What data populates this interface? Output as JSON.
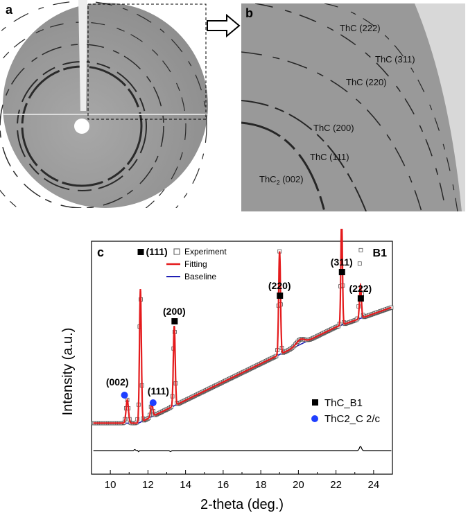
{
  "panel_a": {
    "label": "a"
  },
  "panel_b": {
    "label": "b",
    "reflections": [
      {
        "name": "ThC (222)"
      },
      {
        "name": "ThC (311)"
      },
      {
        "name": "ThC (220)"
      },
      {
        "name": "ThC (200)"
      },
      {
        "name": "ThC (111)"
      },
      {
        "name_main": "ThC",
        "name_sub": "2",
        "name_rest": " (002)"
      }
    ]
  },
  "chart_data": {
    "type": "scatter",
    "label": "c",
    "tag": "B1",
    "xlabel": "2-theta (deg.)",
    "ylabel": "Intensity (a.u.)",
    "xlim": [
      9,
      25
    ],
    "xticks": [
      10,
      12,
      14,
      16,
      18,
      20,
      22,
      24
    ],
    "legend_top": [
      "Experiment",
      "Fitting",
      "Baseline"
    ],
    "legend_bottom": [
      "ThC_B1",
      "ThC2_C 2/c"
    ],
    "colors": {
      "fitting": "#e41a1c",
      "baseline": "#1f1fb4",
      "experiment": "#555555",
      "thc2": "#1f3fff",
      "thc": "#000000"
    },
    "peaks_thc": [
      {
        "label": "(111)",
        "x": 11.6
      },
      {
        "label": "(200)",
        "x": 13.4
      },
      {
        "label": "(220)",
        "x": 19.0
      },
      {
        "label": "(311)",
        "x": 22.3
      },
      {
        "label": "(222)",
        "x": 23.3
      }
    ],
    "peaks_thc2": [
      {
        "label": "(002)",
        "x": 10.9
      },
      {
        "label": "(111)",
        "x": 12.2
      }
    ]
  }
}
